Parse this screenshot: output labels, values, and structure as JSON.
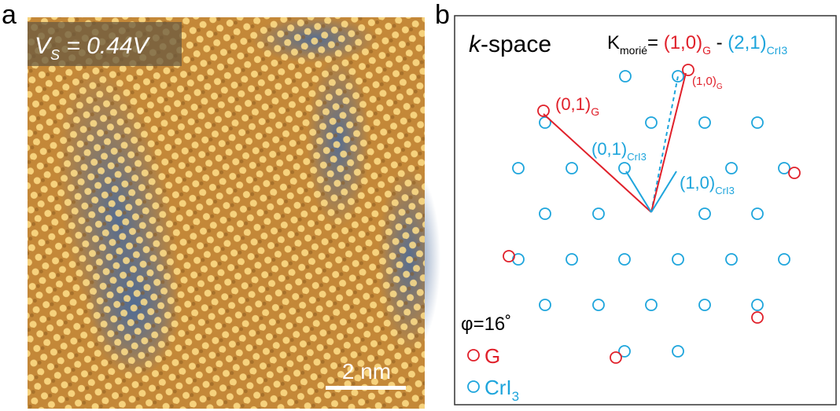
{
  "panel_a": {
    "label": "a",
    "bias_symbol": "V",
    "bias_subscript": "S",
    "bias_value": " = 0.44V",
    "scale_bar": "2 nm"
  },
  "panel_b": {
    "label": "b",
    "title_italic": "k",
    "title_rest": "-space",
    "equation": {
      "symbol": "K",
      "symbol_sub": "morié",
      "equals": "= ",
      "g_vector": "(1,0)",
      "g_sub": "G",
      "minus": " - ",
      "c_vector": "(2,1)",
      "c_sub": "CrI3"
    },
    "vectors": [
      {
        "label": "(1,0)",
        "sub": "G"
      },
      {
        "label": "(0,1)",
        "sub": "G"
      },
      {
        "label": "(0,1)",
        "sub": "CrI3"
      },
      {
        "label": "(1,0)",
        "sub": "CrI3"
      }
    ],
    "angle": "φ=16˚",
    "legend": [
      {
        "label": "G"
      },
      {
        "label": "CrI",
        "sub": "3"
      }
    ]
  }
}
